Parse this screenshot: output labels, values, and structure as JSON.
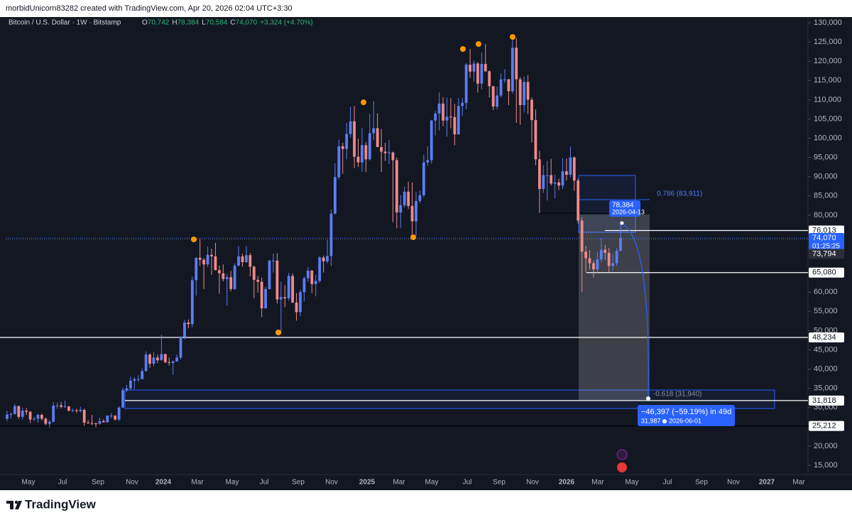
{
  "header": "morbidUnicorn83282 created with TradingView.com, Apr 20, 2026 02:04 UTC+3:30",
  "footer": "TradingView",
  "chart_data": {
    "type": "candlestick",
    "title": "Bitcoin / U.S. Dollar · 1W · Bitstamp",
    "legend_stats": [
      "O",
      "70,742",
      "H",
      "78,384",
      "L",
      "70,584",
      "C",
      "74,070",
      "+3,324 (+4.70%)"
    ],
    "up_color": "#5b7df5",
    "down_color": "#ef8a8a",
    "candles": [
      [
        27100,
        29200,
        26500,
        28200
      ],
      [
        28200,
        28800,
        27200,
        28300
      ],
      [
        28300,
        30900,
        28200,
        30400
      ],
      [
        30400,
        30500,
        27100,
        27600
      ],
      [
        27600,
        30000,
        27000,
        29200
      ],
      [
        29200,
        29900,
        28100,
        28900
      ],
      [
        28900,
        29100,
        26000,
        26900
      ],
      [
        26900,
        27600,
        26600,
        27100
      ],
      [
        27100,
        28400,
        26100,
        28100
      ],
      [
        28100,
        28400,
        26600,
        27100
      ],
      [
        27100,
        27400,
        25400,
        25800
      ],
      [
        25800,
        26800,
        24800,
        26300
      ],
      [
        26300,
        31400,
        26200,
        30500
      ],
      [
        30500,
        31300,
        29700,
        30600
      ],
      [
        30600,
        31500,
        29800,
        30200
      ],
      [
        30200,
        31800,
        29900,
        30300
      ],
      [
        30300,
        30400,
        29000,
        29200
      ],
      [
        29200,
        29700,
        28800,
        29300
      ],
      [
        29300,
        29700,
        28600,
        29100
      ],
      [
        29100,
        30200,
        28700,
        29400
      ],
      [
        29400,
        29700,
        25200,
        26100
      ],
      [
        26100,
        26800,
        25800,
        26000
      ],
      [
        26000,
        28100,
        25400,
        25900
      ],
      [
        25900,
        26100,
        24900,
        25800
      ],
      [
        25800,
        27400,
        25600,
        26500
      ],
      [
        26500,
        27000,
        26100,
        26200
      ],
      [
        26200,
        28000,
        26000,
        27900
      ],
      [
        27900,
        28600,
        27200,
        27900
      ],
      [
        27900,
        28000,
        26600,
        26900
      ],
      [
        26900,
        30300,
        26500,
        30000
      ],
      [
        30000,
        35200,
        29900,
        34500
      ],
      [
        34500,
        35900,
        34100,
        35000
      ],
      [
        35000,
        38000,
        34500,
        37000
      ],
      [
        37000,
        37900,
        34800,
        37400
      ],
      [
        37400,
        38400,
        36700,
        37400
      ],
      [
        37400,
        40200,
        37300,
        39500
      ],
      [
        39500,
        44600,
        39300,
        43800
      ],
      [
        43800,
        44100,
        40300,
        41400
      ],
      [
        41400,
        44400,
        40700,
        43000
      ],
      [
        43000,
        43800,
        41500,
        42300
      ],
      [
        42300,
        48900,
        42200,
        43900
      ],
      [
        43900,
        44000,
        41500,
        41800
      ],
      [
        41800,
        43000,
        40900,
        41600
      ],
      [
        41600,
        42200,
        38500,
        42000
      ],
      [
        42000,
        43800,
        41900,
        43000
      ],
      [
        43000,
        48600,
        42500,
        48300
      ],
      [
        48300,
        52800,
        47700,
        52100
      ],
      [
        52100,
        52900,
        50600,
        51700
      ],
      [
        51700,
        64000,
        50900,
        63100
      ],
      [
        63100,
        69100,
        59100,
        68900
      ],
      [
        68900,
        73800,
        66800,
        68400
      ],
      [
        68400,
        68900,
        60800,
        67200
      ],
      [
        67200,
        71800,
        66600,
        69700
      ],
      [
        69700,
        71300,
        64500,
        69300
      ],
      [
        69300,
        72800,
        65700,
        65700
      ],
      [
        65700,
        66900,
        59600,
        64900
      ],
      [
        64900,
        67200,
        62800,
        63400
      ],
      [
        63400,
        64700,
        56500,
        63900
      ],
      [
        63900,
        65500,
        60200,
        60800
      ],
      [
        60800,
        67500,
        60600,
        66900
      ],
      [
        66900,
        71900,
        66700,
        69300
      ],
      [
        69300,
        70000,
        66600,
        67800
      ],
      [
        67800,
        71900,
        67600,
        69600
      ],
      [
        69600,
        70200,
        64100,
        66600
      ],
      [
        66600,
        66900,
        58400,
        63200
      ],
      [
        63200,
        64200,
        59900,
        62700
      ],
      [
        62700,
        63800,
        53500,
        55800
      ],
      [
        55800,
        61400,
        55700,
        60800
      ],
      [
        60800,
        68400,
        60700,
        68200
      ],
      [
        68200,
        70000,
        65100,
        68200
      ],
      [
        68200,
        70100,
        57100,
        58100
      ],
      [
        58100,
        62700,
        49100,
        58700
      ],
      [
        58700,
        61800,
        56100,
        58400
      ],
      [
        58400,
        65000,
        57800,
        64200
      ],
      [
        64200,
        64900,
        57200,
        57300
      ],
      [
        57300,
        59800,
        52600,
        54800
      ],
      [
        54800,
        60600,
        53700,
        60000
      ],
      [
        60000,
        64100,
        57600,
        63600
      ],
      [
        63600,
        66500,
        62700,
        65600
      ],
      [
        65600,
        65700,
        59800,
        62100
      ],
      [
        62100,
        64500,
        58900,
        62900
      ],
      [
        62900,
        69400,
        62400,
        69000
      ],
      [
        69000,
        69500,
        65100,
        68000
      ],
      [
        68000,
        73600,
        67500,
        69400
      ],
      [
        69400,
        81500,
        66800,
        80400
      ],
      [
        80400,
        93500,
        80200,
        89900
      ],
      [
        89900,
        99600,
        89300,
        97900
      ],
      [
        97900,
        98800,
        90800,
        97200
      ],
      [
        97200,
        104000,
        94500,
        101100
      ],
      [
        101100,
        108200,
        100200,
        104400
      ],
      [
        104400,
        108400,
        92200,
        95200
      ],
      [
        95200,
        99900,
        92500,
        93700
      ],
      [
        93700,
        102700,
        91300,
        98200
      ],
      [
        98200,
        99000,
        91200,
        94500
      ],
      [
        94500,
        106400,
        94200,
        101300
      ],
      [
        101300,
        109600,
        99500,
        102600
      ],
      [
        102600,
        106500,
        97700,
        97700
      ],
      [
        97700,
        102400,
        91200,
        96500
      ],
      [
        96500,
        98800,
        94100,
        96100
      ],
      [
        96100,
        99500,
        93300,
        96300
      ],
      [
        96300,
        96500,
        78200,
        94300
      ],
      [
        94300,
        95000,
        76600,
        80700
      ],
      [
        80700,
        85200,
        76600,
        82600
      ],
      [
        82600,
        87400,
        82000,
        86100
      ],
      [
        86100,
        88700,
        81600,
        82400
      ],
      [
        82400,
        88500,
        74500,
        78400
      ],
      [
        78400,
        86100,
        74600,
        83700
      ],
      [
        83700,
        86400,
        83100,
        85200
      ],
      [
        85200,
        95700,
        84600,
        93700
      ],
      [
        93700,
        97900,
        92800,
        94300
      ],
      [
        94300,
        104800,
        93400,
        104600
      ],
      [
        104600,
        107100,
        100700,
        106400
      ],
      [
        106400,
        111900,
        102000,
        109000
      ],
      [
        109000,
        110700,
        103100,
        104600
      ],
      [
        104600,
        110600,
        100400,
        105600
      ],
      [
        105600,
        110400,
        102600,
        105500
      ],
      [
        105500,
        108900,
        98200,
        101000
      ],
      [
        101000,
        110500,
        100900,
        108400
      ],
      [
        108400,
        110500,
        105800,
        109200
      ],
      [
        109200,
        119500,
        107500,
        119100
      ],
      [
        119100,
        123200,
        115700,
        117300
      ],
      [
        117300,
        120200,
        114700,
        119400
      ],
      [
        119400,
        119800,
        111900,
        114200
      ],
      [
        114200,
        122300,
        112700,
        119300
      ],
      [
        119300,
        124500,
        117200,
        117400
      ],
      [
        117400,
        117600,
        110600,
        113500
      ],
      [
        113500,
        113600,
        107300,
        108200
      ],
      [
        108200,
        113400,
        107500,
        111100
      ],
      [
        111100,
        116800,
        110600,
        115300
      ],
      [
        115300,
        117900,
        114400,
        115300
      ],
      [
        115300,
        115400,
        108600,
        112200
      ],
      [
        112200,
        126200,
        111600,
        123500
      ],
      [
        123500,
        126000,
        104000,
        115300
      ],
      [
        115300,
        115900,
        103500,
        108600
      ],
      [
        108600,
        116000,
        106700,
        114600
      ],
      [
        114600,
        116400,
        106300,
        110000
      ],
      [
        110000,
        110600,
        98900,
        104700
      ],
      [
        104700,
        107500,
        93000,
        94500
      ],
      [
        94500,
        96700,
        80600,
        86800
      ],
      [
        86800,
        93000,
        85800,
        90400
      ],
      [
        90400,
        94100,
        83800,
        90400
      ],
      [
        90400,
        94600,
        87700,
        88200
      ],
      [
        88200,
        90500,
        84400,
        88500
      ],
      [
        88500,
        89500,
        86500,
        87700
      ],
      [
        87700,
        94800,
        86800,
        91400
      ],
      [
        91400,
        94700,
        89000,
        90500
      ],
      [
        90500,
        97900,
        89800,
        95000
      ],
      [
        95000,
        95300,
        86300,
        89000
      ],
      [
        89000,
        89500,
        77800,
        78600
      ],
      [
        78600,
        79500,
        60100,
        70500
      ],
      [
        70500,
        72000,
        65100,
        68800
      ],
      [
        68800,
        70900,
        65800,
        67500
      ],
      [
        67500,
        68200,
        63800,
        65900
      ],
      [
        65900,
        70500,
        65100,
        68500
      ],
      [
        68500,
        74000,
        67800,
        71000
      ],
      [
        71000,
        72300,
        68400,
        70200
      ],
      [
        70200,
        71500,
        65100,
        66800
      ],
      [
        66800,
        69800,
        65500,
        67500
      ],
      [
        67500,
        71400,
        66900,
        70700
      ],
      [
        70742,
        78384,
        70584,
        74070
      ]
    ],
    "ylim": [
      12600,
      131300
    ],
    "yticks": [
      {
        "value": 130000,
        "label": "130,000"
      },
      {
        "value": 125000,
        "label": "125,000"
      },
      {
        "value": 120000,
        "label": "120,000"
      },
      {
        "value": 115000,
        "label": "115,000"
      },
      {
        "value": 110000,
        "label": "110,000"
      },
      {
        "value": 105000,
        "label": "105,000"
      },
      {
        "value": 100000,
        "label": "100,000"
      },
      {
        "value": 95000,
        "label": "95,000"
      },
      {
        "value": 90000,
        "label": "90,000"
      },
      {
        "value": 85000,
        "label": "85,000"
      },
      {
        "value": 80000,
        "label": "80,000"
      },
      {
        "value": 60000,
        "label": "60,000"
      },
      {
        "value": 55000,
        "label": "55,000"
      },
      {
        "value": 50000,
        "label": "50,000"
      },
      {
        "value": 45000,
        "label": "45,000"
      },
      {
        "value": 40000,
        "label": "40,000"
      },
      {
        "value": 35000,
        "label": "35,000"
      },
      {
        "value": 30000,
        "label": "30,000"
      },
      {
        "value": 20000,
        "label": "20,000"
      },
      {
        "value": 15000,
        "label": "15,000"
      }
    ],
    "xtick_labels": [
      "May",
      "Jul",
      "Sep",
      "Nov",
      "2024",
      "Mar",
      "May",
      "Jul",
      "Sep",
      "Nov",
      "2025",
      "Mar",
      "May",
      "Jul",
      "Sep",
      "Nov",
      "2026",
      "Mar",
      "May",
      "Jul",
      "Sep",
      "Nov",
      "2027",
      "Mar"
    ],
    "price_lines": [
      {
        "value": 76013,
        "label": "76,013"
      },
      {
        "value": 65080,
        "label": "65,080"
      },
      {
        "value": 48234,
        "label": "48,234"
      },
      {
        "value": 31818,
        "label": "31,818"
      },
      {
        "value": 25212,
        "label": "25,212"
      }
    ],
    "last_price": {
      "value": 74070,
      "label": "74,070",
      "countdown": "01:25:25"
    },
    "prev_close": {
      "value": 73794,
      "label": "73,794"
    },
    "annotations": {
      "tooltip_price": "78,384",
      "tooltip_date": "2026-04-13",
      "fib_upper": "0.786 (83,911)",
      "fib_lower": "-0.618 (31,940)",
      "measure": "−46,397 (−59.19%) in 49d",
      "measure_price": "31,987",
      "measure_date": "2026-06-01"
    }
  }
}
